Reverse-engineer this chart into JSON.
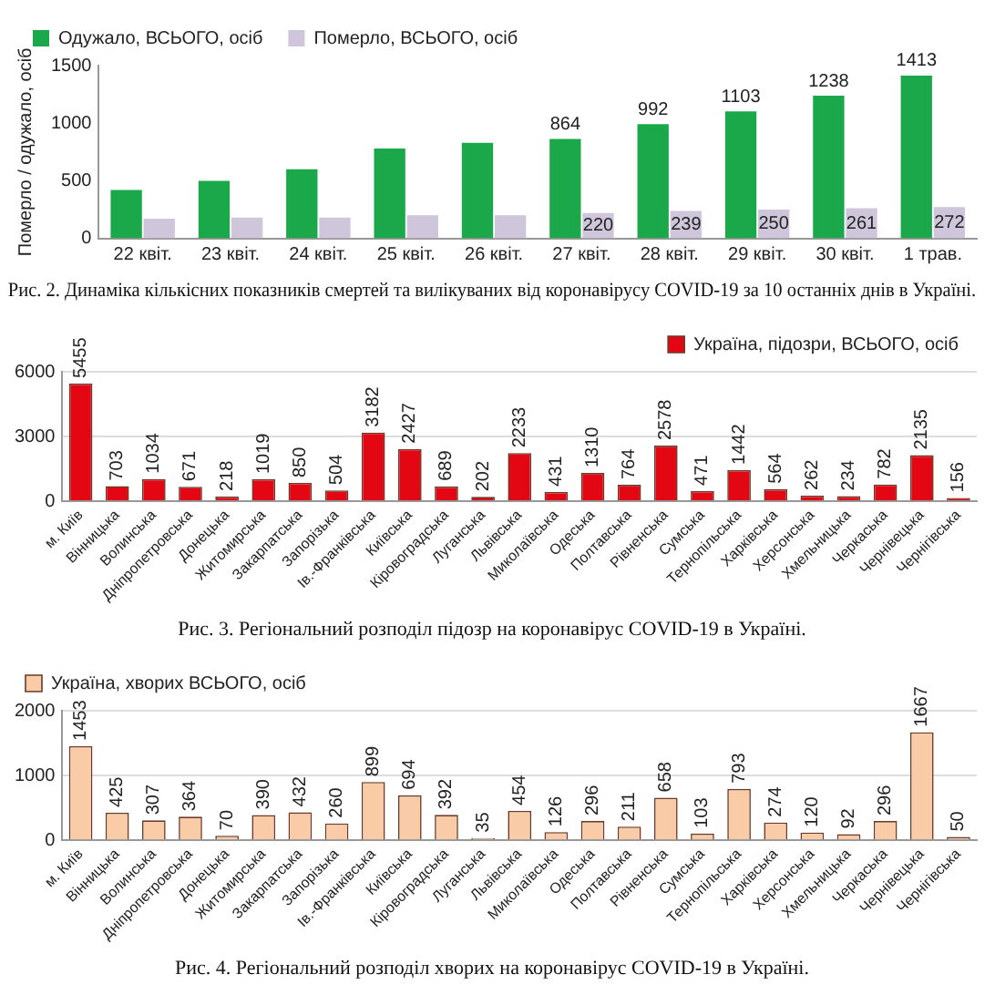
{
  "chart_data": [
    {
      "type": "bar",
      "title": "Рис. 2. Динаміка кількісних показників смертей та вилікуваних від коронавірусу COVID-19 за 10 останніх днів в Україні.",
      "ylabel": "Померло / одужало, осіб",
      "categories": [
        "22 квіт.",
        "23 квіт.",
        "24 квіт.",
        "25 квіт.",
        "26 квіт.",
        "27 квіт.",
        "28 квіт.",
        "29 квіт.",
        "30 квіт.",
        "1 трав."
      ],
      "series": [
        {
          "name": "Одужало, ВСЬОГО, осіб",
          "color": "#1aa84a",
          "values": [
            420,
            500,
            600,
            780,
            830,
            864,
            992,
            1103,
            1238,
            1413
          ],
          "value_labels": [
            null,
            null,
            null,
            null,
            null,
            "864",
            "992",
            "1103",
            "1238",
            "1413"
          ]
        },
        {
          "name": "Померло, ВСЬОГО, осіб",
          "color": "#cfc6dc",
          "values": [
            170,
            180,
            180,
            200,
            200,
            220,
            239,
            250,
            261,
            272
          ],
          "value_labels": [
            null,
            null,
            null,
            null,
            null,
            "220",
            "239",
            "250",
            "261",
            "272"
          ]
        }
      ],
      "ylim": [
        0,
        1500
      ],
      "yticks": [
        0,
        500,
        1000,
        1500
      ],
      "legend": "top left"
    },
    {
      "type": "bar",
      "title": "Рис. 3. Регіональний розподіл підозр на коронавірус COVID-19 в Україні.",
      "categories": [
        "м. Київ",
        "Вінницька",
        "Волинська",
        "Дніпропетровська",
        "Донецька",
        "Житомирська",
        "Закарпатська",
        "Запорізька",
        "Ів.-Франківська",
        "Київська",
        "Кіровоградська",
        "Луганська",
        "Львівська",
        "Миколаївська",
        "Одеська",
        "Полтавська",
        "Рівненська",
        "Сумська",
        "Тернопільська",
        "Харківська",
        "Херсонська",
        "Хмельницька",
        "Черкаська",
        "Чернівецька",
        "Чернігівська"
      ],
      "series": [
        {
          "name": "Україна, підозри, ВСЬОГО, осіб",
          "color": "#e30613",
          "values": [
            5455,
            703,
            1034,
            671,
            218,
            1019,
            850,
            504,
            3182,
            2427,
            689,
            202,
            2233,
            431,
            1310,
            764,
            2578,
            471,
            1442,
            564,
            262,
            234,
            782,
            2135,
            156
          ]
        }
      ],
      "ylim": [
        0,
        6000
      ],
      "yticks": [
        0,
        3000,
        6000
      ],
      "grid": "y",
      "legend": "top right",
      "data_labels": true
    },
    {
      "type": "bar",
      "title": "Рис. 4. Регіональний розподіл хворих на коронавірус COVID-19 в Україні.",
      "categories": [
        "м. Київ",
        "Вінницька",
        "Волинська",
        "Дніпропетровська",
        "Донецька",
        "Житомирська",
        "Закарпатська",
        "Запорізька",
        "Ів.-Франківська",
        "Київська",
        "Кіровоградська",
        "Луганська",
        "Львівська",
        "Миколаївська",
        "Одеська",
        "Полтавська",
        "Рівненська",
        "Сумська",
        "Тернопільська",
        "Харківська",
        "Херсонська",
        "Хмельницька",
        "Черкаська",
        "Чернівецька",
        "Чернігівська"
      ],
      "series": [
        {
          "name": "Україна, хворих ВСЬОГО, осіб",
          "color": "#f9cba7",
          "values": [
            1453,
            425,
            307,
            364,
            70,
            390,
            432,
            260,
            899,
            694,
            392,
            35,
            454,
            126,
            296,
            211,
            658,
            103,
            793,
            274,
            120,
            92,
            296,
            1667,
            50
          ]
        }
      ],
      "ylim": [
        0,
        2000
      ],
      "yticks": [
        0,
        1000,
        2000
      ],
      "grid": "y",
      "legend": "top left",
      "data_labels": true
    }
  ]
}
